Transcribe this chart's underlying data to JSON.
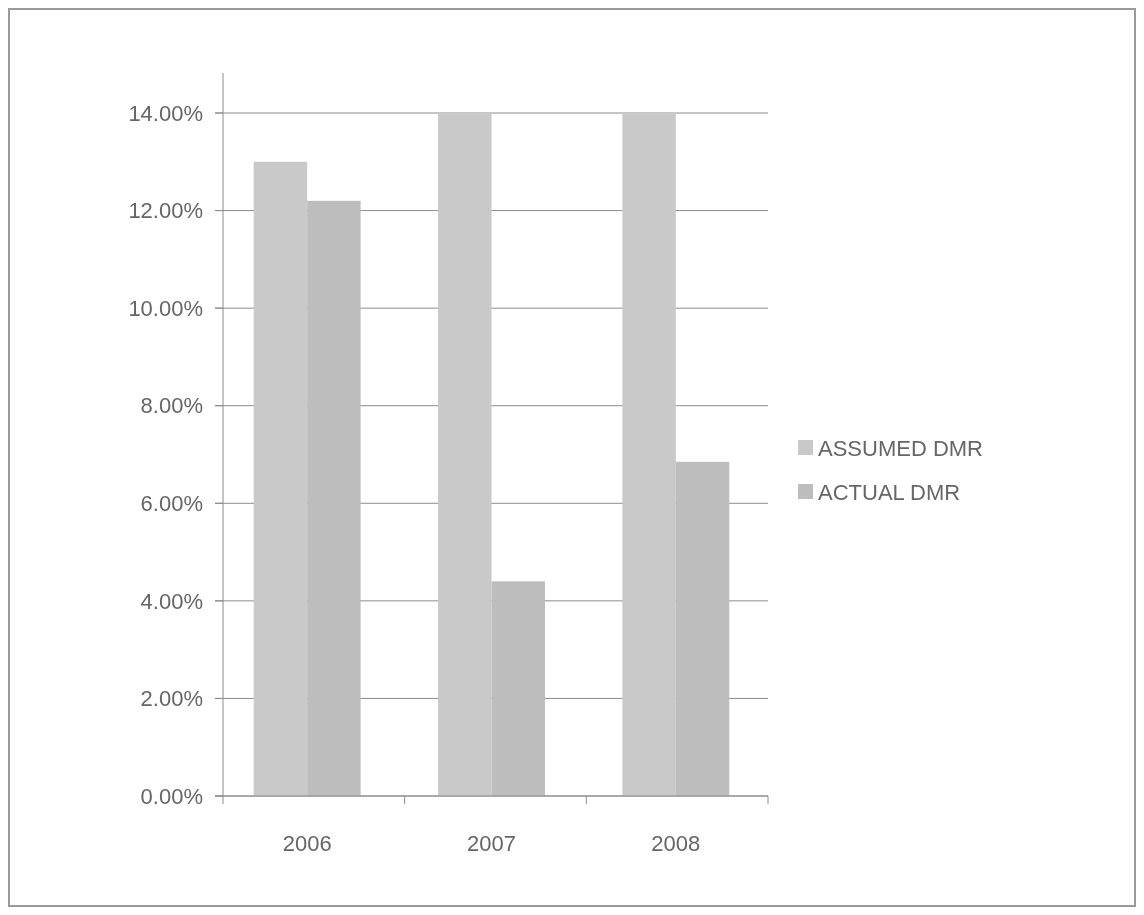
{
  "chart_data": {
    "type": "bar",
    "categories": [
      "2006",
      "2007",
      "2008"
    ],
    "series": [
      {
        "name": "ASSUMED DMR",
        "color": "#c9c9c9",
        "values": [
          13.0,
          14.0,
          14.0
        ]
      },
      {
        "name": "ACTUAL DMR",
        "color": "#bdbdbd",
        "values": [
          12.2,
          4.4,
          6.85
        ]
      }
    ],
    "ylim": [
      0,
      14
    ],
    "yticks": [
      {
        "value": 0,
        "label": "0.00%"
      },
      {
        "value": 2,
        "label": "2.00%"
      },
      {
        "value": 4,
        "label": "4.00%"
      },
      {
        "value": 6,
        "label": "6.00%"
      },
      {
        "value": 8,
        "label": "8.00%"
      },
      {
        "value": 10,
        "label": "10.00%"
      },
      {
        "value": 12,
        "label": "12.00%"
      },
      {
        "value": 14,
        "label": "14.00%"
      }
    ],
    "grid": "y",
    "legend": "right"
  }
}
